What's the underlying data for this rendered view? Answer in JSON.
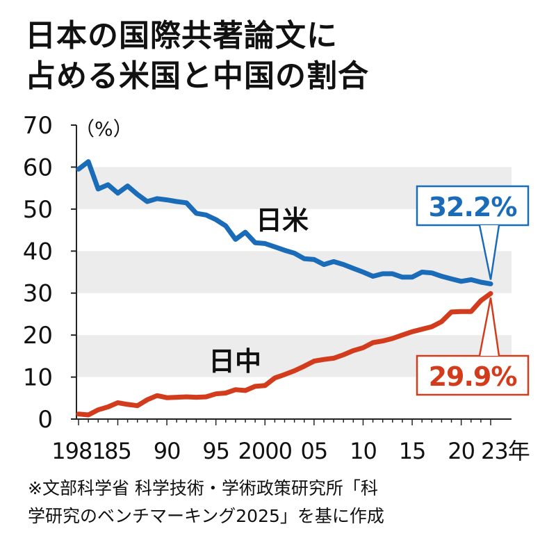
{
  "title": {
    "line1": "日本の国際共著論文に",
    "line2": "占める米国と中国の割合"
  },
  "source": {
    "line1": "※文部科学省 科学技術・学術政策研究所「科",
    "line2": "学研究のベンチマーキング2025」を基に作成"
  },
  "chart_data": {
    "type": "line",
    "ylim": [
      0,
      70
    ],
    "yticks": [
      0,
      10,
      20,
      30,
      40,
      50,
      60,
      70
    ],
    "yunit": "（%）",
    "xlim": [
      1981,
      2023
    ],
    "xticks": [
      {
        "year": 1981,
        "label": "1981"
      },
      {
        "year": 1985,
        "label": "85"
      },
      {
        "year": 1990,
        "label": "90"
      },
      {
        "year": 1995,
        "label": "95"
      },
      {
        "year": 2000,
        "label": "2000"
      },
      {
        "year": 2005,
        "label": "05"
      },
      {
        "year": 2010,
        "label": "10"
      },
      {
        "year": 2015,
        "label": "15"
      },
      {
        "year": 2020,
        "label": "20"
      },
      {
        "year": 2023,
        "label": "23年"
      }
    ],
    "series": [
      {
        "name": "日米",
        "color": "#1a6bb8",
        "x": [
          1981,
          1982,
          1983,
          1984,
          1985,
          1986,
          1987,
          1988,
          1989,
          1990,
          1991,
          1992,
          1993,
          1994,
          1995,
          1996,
          1997,
          1998,
          1999,
          2000,
          2001,
          2002,
          2003,
          2004,
          2005,
          2006,
          2007,
          2008,
          2009,
          2010,
          2011,
          2012,
          2013,
          2014,
          2015,
          2016,
          2017,
          2018,
          2019,
          2020,
          2021,
          2022,
          2023
        ],
        "y": [
          59.5,
          61.3,
          54.8,
          55.8,
          53.8,
          55.5,
          53.5,
          51.8,
          52.5,
          52.2,
          51.8,
          51.5,
          49.0,
          48.6,
          47.5,
          46.0,
          42.8,
          44.5,
          42.0,
          41.8,
          41.0,
          40.2,
          39.5,
          38.2,
          38.0,
          36.8,
          37.5,
          36.8,
          35.9,
          35.0,
          34.0,
          34.6,
          34.6,
          33.8,
          33.8,
          35.0,
          34.8,
          34.0,
          33.4,
          32.8,
          33.2,
          32.6,
          32.2
        ],
        "callout": "32.2%"
      },
      {
        "name": "日中",
        "color": "#d23c1c",
        "x": [
          1981,
          1982,
          1983,
          1984,
          1985,
          1986,
          1987,
          1988,
          1989,
          1990,
          1991,
          1992,
          1993,
          1994,
          1995,
          1996,
          1997,
          1998,
          1999,
          2000,
          2001,
          2002,
          2003,
          2004,
          2005,
          2006,
          2007,
          2008,
          2009,
          2010,
          2011,
          2012,
          2013,
          2014,
          2015,
          2016,
          2017,
          2018,
          2019,
          2020,
          2021,
          2022,
          2023
        ],
        "y": [
          1.2,
          1.0,
          2.2,
          2.9,
          3.9,
          3.5,
          3.2,
          4.6,
          5.6,
          5.1,
          5.2,
          5.3,
          5.2,
          5.3,
          6.0,
          6.2,
          7.0,
          6.8,
          7.8,
          8.0,
          9.8,
          10.6,
          11.5,
          12.6,
          13.8,
          14.2,
          14.5,
          15.3,
          16.3,
          17.0,
          18.2,
          18.6,
          19.2,
          20.0,
          20.8,
          21.4,
          22.0,
          23.2,
          25.5,
          25.6,
          25.6,
          28.2,
          29.9
        ],
        "callout": "29.9%"
      }
    ],
    "grid": "alternating-bands"
  }
}
